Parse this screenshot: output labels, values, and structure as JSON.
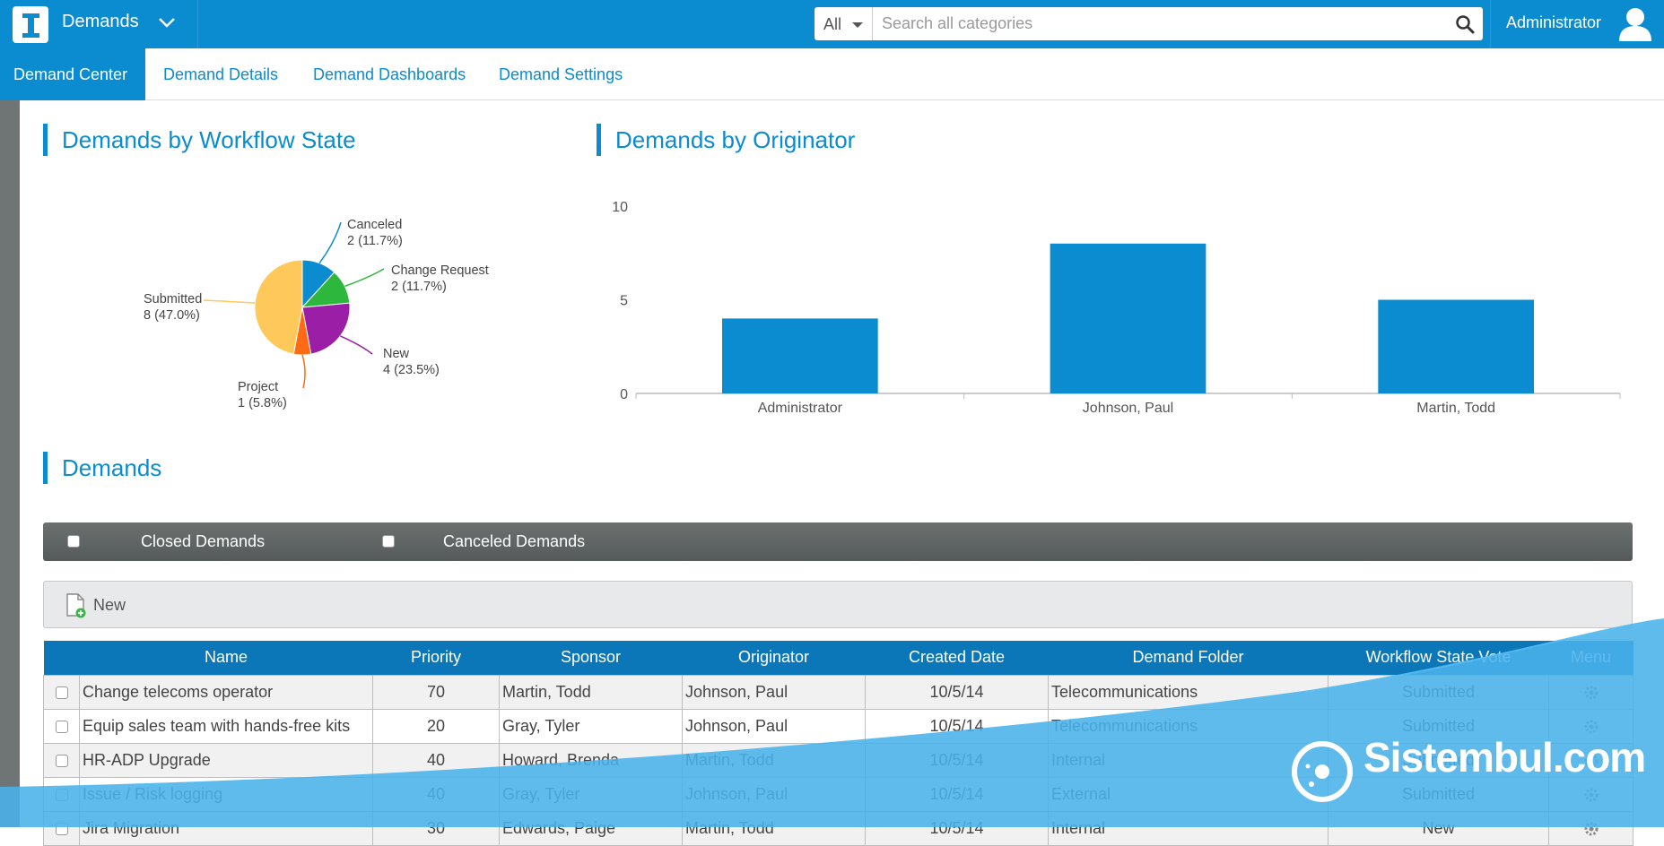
{
  "header": {
    "app_title": "Demands",
    "search_scope": "All",
    "search_placeholder": "Search all categories",
    "user_name": "Administrator"
  },
  "tabs": [
    {
      "label": "Demand Center",
      "active": true
    },
    {
      "label": "Demand Details",
      "active": false
    },
    {
      "label": "Demand Dashboards",
      "active": false
    },
    {
      "label": "Demand Settings",
      "active": false
    }
  ],
  "sections": {
    "workflow_title": "Demands by Workflow State",
    "originator_title": "Demands by Originator",
    "demands_title": "Demands"
  },
  "pie_chart": {
    "type": "pie",
    "slices": [
      {
        "label": "Canceled",
        "value_text": "2 (11.7%)",
        "value": 2,
        "color": "#0b8bd0"
      },
      {
        "label": "Change Request",
        "value_text": "2 (11.7%)",
        "value": 2,
        "color": "#2db83d"
      },
      {
        "label": "New",
        "value_text": "4 (23.5%)",
        "value": 4,
        "color": "#9a1ea6"
      },
      {
        "label": "Project",
        "value_text": "1 (5.8%)",
        "value": 1,
        "color": "#ff6a13"
      },
      {
        "label": "Submitted",
        "value_text": "8 (47.0%)",
        "value": 8,
        "color": "#ffc85a"
      }
    ]
  },
  "chart_data": {
    "type": "bar",
    "categories": [
      "Administrator",
      "Johnson, Paul",
      "Martin, Todd"
    ],
    "values": [
      4,
      8,
      5
    ],
    "y_ticks": [
      "0",
      "5",
      "10"
    ],
    "ylim": [
      0,
      10
    ],
    "bar_color": "#0b8bd0"
  },
  "filters": {
    "closed_label": "Closed Demands",
    "canceled_label": "Canceled Demands"
  },
  "toolbar": {
    "new_label": "New"
  },
  "table": {
    "columns": [
      "Name",
      "Priority",
      "Sponsor",
      "Originator",
      "Created Date",
      "Demand Folder",
      "Workflow State Vote",
      "Menu"
    ],
    "rows": [
      {
        "name": "Change telecoms operator",
        "priority": "70",
        "sponsor": "Martin, Todd",
        "originator": "Johnson, Paul",
        "created": "10/5/14",
        "folder": "Telecommunications",
        "state": "Submitted"
      },
      {
        "name": "Equip sales team with hands-free kits",
        "priority": "20",
        "sponsor": "Gray, Tyler",
        "originator": "Johnson, Paul",
        "created": "10/5/14",
        "folder": "Telecommunications",
        "state": "Submitted"
      },
      {
        "name": "HR-ADP Upgrade",
        "priority": "40",
        "sponsor": "Howard, Brenda",
        "originator": "Martin, Todd",
        "created": "10/5/14",
        "folder": "Internal",
        "state": "Submitted"
      },
      {
        "name": "Issue / Risk logging",
        "priority": "40",
        "sponsor": "Gray, Tyler",
        "originator": "Johnson, Paul",
        "created": "10/5/14",
        "folder": "External",
        "state": "Submitted"
      },
      {
        "name": "Jira Migration",
        "priority": "30",
        "sponsor": "Edwards, Paige",
        "originator": "Martin, Todd",
        "created": "10/5/14",
        "folder": "Internal",
        "state": "New"
      }
    ]
  },
  "watermark": {
    "brand": "Sistembul.com"
  }
}
